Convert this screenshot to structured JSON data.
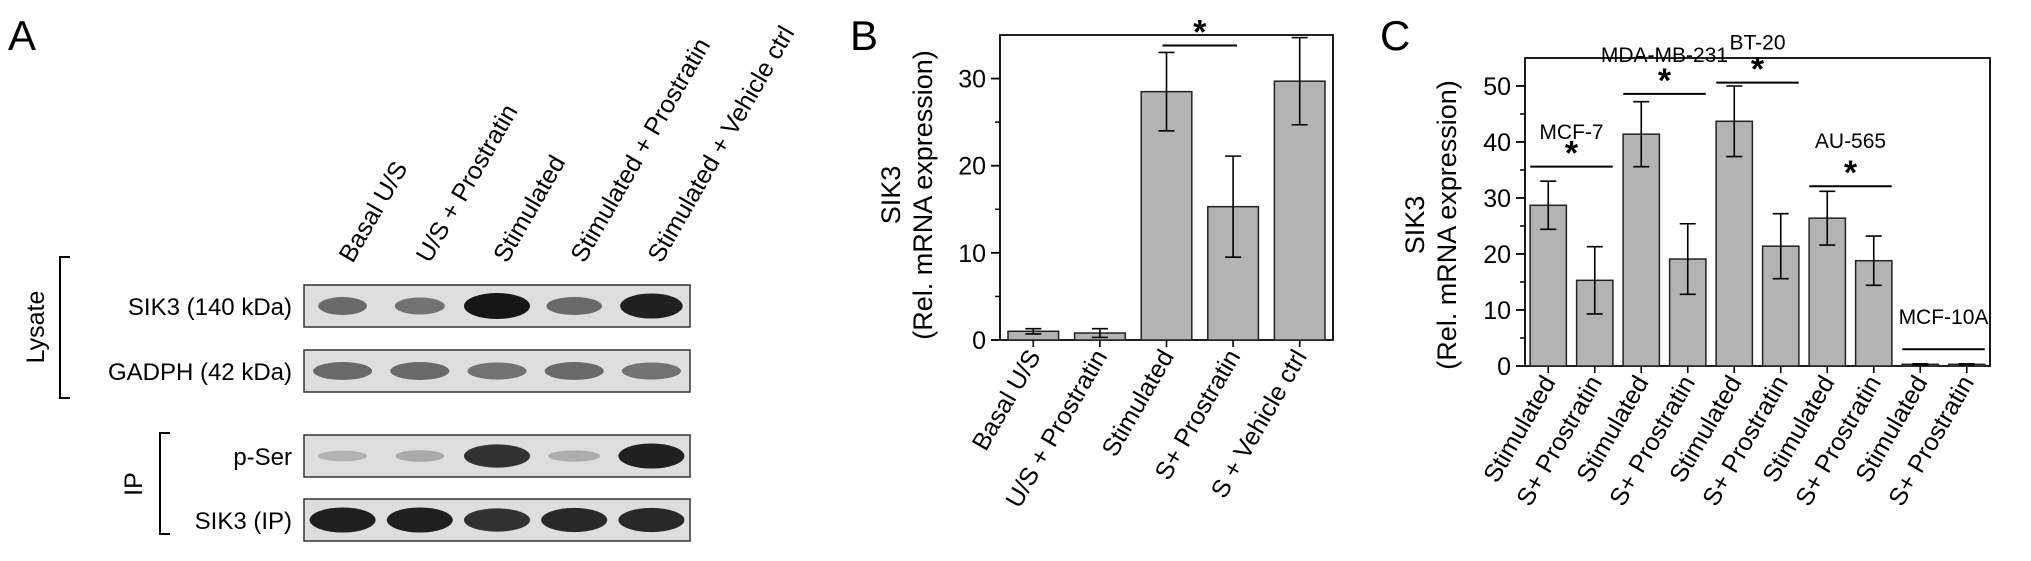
{
  "panel_a": {
    "label": "A",
    "lane_labels": [
      "Basal U/S",
      "U/S + Prostratin",
      "Stimulated",
      "Stimulated + Prostratin",
      "Stimulated + Vehicle ctrl"
    ],
    "group_labels": [
      "Lysate",
      "IP"
    ],
    "blots": [
      {
        "label": "SIK3 (140 kDa)",
        "group": "Lysate",
        "intensity": [
          0.55,
          0.5,
          1.0,
          0.55,
          0.95
        ],
        "band_width": [
          0.7,
          0.72,
          0.95,
          0.8,
          0.9
        ]
      },
      {
        "label": "GADPH (42 kDa)",
        "group": "Lysate",
        "intensity": [
          0.55,
          0.55,
          0.5,
          0.55,
          0.5
        ],
        "band_width": [
          0.85,
          0.85,
          0.85,
          0.85,
          0.85
        ]
      },
      {
        "label": "p-Ser",
        "group": "IP",
        "intensity": [
          0.15,
          0.2,
          0.85,
          0.18,
          0.95
        ],
        "band_width": [
          0.7,
          0.7,
          0.95,
          0.75,
          0.95
        ]
      },
      {
        "label": "SIK3 (IP)",
        "group": "IP",
        "intensity": [
          0.95,
          0.95,
          0.85,
          0.9,
          0.9
        ],
        "band_width": [
          0.95,
          0.95,
          0.95,
          0.95,
          0.95
        ]
      }
    ]
  },
  "chart_data": [
    {
      "panel": "B",
      "type": "bar",
      "title": "",
      "ylabel": "SIK3",
      "ylabel2": "(Rel. mRNA expression)",
      "xlabel": "",
      "ylim": [
        0,
        35
      ],
      "yticks": [
        0,
        10,
        20,
        30
      ],
      "grid": false,
      "categories": [
        "Basal U/S",
        "U/S + Prostratin",
        "Stimulated",
        "S+ Prostratin",
        "S + Vehicle ctrl"
      ],
      "values": [
        1.0,
        0.8,
        28.5,
        15.3,
        29.7
      ],
      "errors": [
        0.3,
        0.5,
        4.5,
        5.8,
        5.0
      ],
      "significance": [
        {
          "from": 2,
          "to": 3,
          "label": "*",
          "y": 33.8
        }
      ]
    },
    {
      "panel": "C",
      "type": "bar",
      "title": "",
      "ylabel": "SIK3",
      "ylabel2": "(Rel. mRNA expression)",
      "xlabel": "",
      "ylim": [
        0,
        55
      ],
      "yticks": [
        0,
        10,
        20,
        30,
        40,
        50
      ],
      "grid": false,
      "categories": [
        "Stimulated",
        "S+ Prostratin",
        "Stimulated",
        "S+ Prostratin",
        "Stimulated",
        "S+ Prostratin",
        "Stimulated",
        "S+ Prostratin",
        "Stimulated",
        "S+ Prostratin"
      ],
      "values": [
        28.7,
        15.3,
        41.4,
        19.1,
        43.7,
        21.4,
        26.4,
        18.8,
        0.3,
        0.3
      ],
      "errors": [
        4.3,
        6.0,
        5.8,
        6.3,
        6.3,
        5.8,
        4.8,
        4.4,
        0.1,
        0.1
      ],
      "groups": [
        {
          "name": "MCF-7",
          "from": 0,
          "to": 1,
          "line_y": 35.6,
          "star": "*",
          "name_y": 40.5
        },
        {
          "name": "MDA-MB-231",
          "from": 2,
          "to": 3,
          "line_y": 48.6,
          "star": "*",
          "name_y": 54.3
        },
        {
          "name": "BT-20",
          "from": 4,
          "to": 5,
          "line_y": 50.6,
          "star": "*",
          "name_y": 56.5
        },
        {
          "name": "AU-565",
          "from": 6,
          "to": 7,
          "line_y": 32.1,
          "star": "*",
          "name_y": 38.9
        },
        {
          "name": "MCF-10A",
          "from": 8,
          "to": 9,
          "line_y": 3.0,
          "star": "",
          "name_y": 7.5
        }
      ]
    }
  ]
}
